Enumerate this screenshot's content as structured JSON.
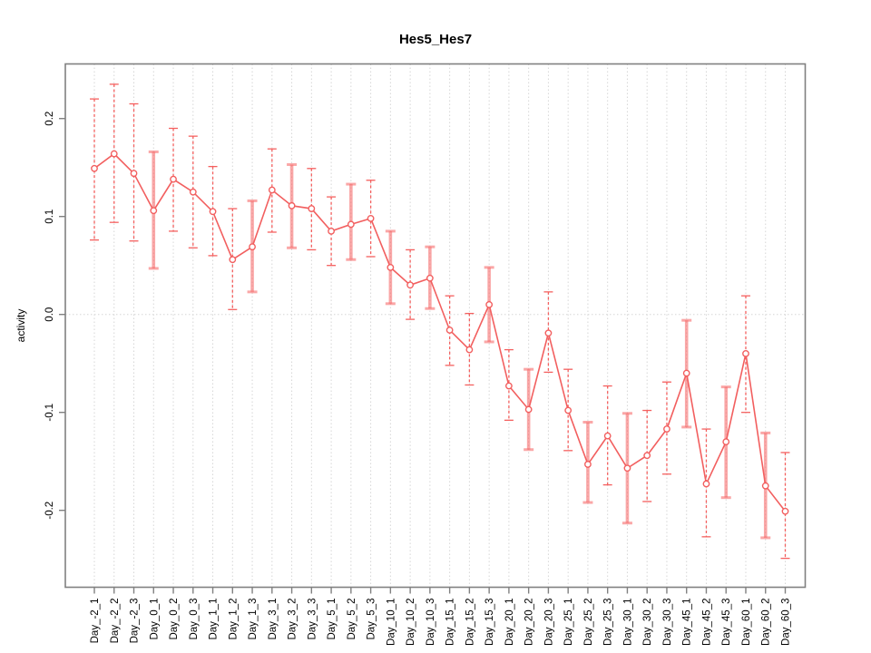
{
  "window": {
    "background": "#ffffff"
  },
  "chart_data": {
    "type": "line",
    "title": "Hes5_Hes7",
    "xlabel": "",
    "ylabel": "activity",
    "ylim": [
      -0.278,
      0.256
    ],
    "yticks": [
      0.2,
      0.1,
      0.0,
      -0.1,
      -0.2
    ],
    "ytick_labels": [
      "0.2",
      "0.1",
      "0.0",
      "-0.1",
      "-0.2"
    ],
    "grid": "vertical dotted gridline at every category; horizontal dotted line at y=0",
    "legend": "none",
    "style": "open circle points with vertical error bars (whisker caps), connected by a line; R base-graphics look",
    "colors": {
      "point_line": "#f25f5f",
      "error_bar_thin": "#f4605f",
      "error_bar_thick": "rgba(246,108,108,0.6)",
      "gridline": "#d6d6d6",
      "frame": "#808080",
      "text": "#000000"
    },
    "categories": [
      "Day_-2_1",
      "Day_-2_2",
      "Day_-2_3",
      "Day_0_1",
      "Day_0_2",
      "Day_0_3",
      "Day_1_1",
      "Day_1_2",
      "Day_1_3",
      "Day_3_1",
      "Day_3_2",
      "Day_3_3",
      "Day_5_1",
      "Day_5_2",
      "Day_5_3",
      "Day_10_1",
      "Day_10_2",
      "Day_10_3",
      "Day_15_1",
      "Day_15_2",
      "Day_15_3",
      "Day_20_1",
      "Day_20_2",
      "Day_20_3",
      "Day_25_1",
      "Day_25_2",
      "Day_25_3",
      "Day_30_1",
      "Day_30_2",
      "Day_30_3",
      "Day_45_1",
      "Day_45_2",
      "Day_45_3",
      "Day_60_1",
      "Day_60_2",
      "Day_60_3"
    ],
    "values": [
      0.149,
      0.164,
      0.144,
      0.106,
      0.138,
      0.125,
      0.105,
      0.056,
      0.069,
      0.127,
      0.111,
      0.108,
      0.085,
      0.092,
      0.098,
      0.048,
      0.03,
      0.037,
      -0.016,
      -0.036,
      0.01,
      -0.073,
      -0.097,
      -0.019,
      -0.098,
      -0.153,
      -0.124,
      -0.157,
      -0.144,
      -0.117,
      -0.06,
      -0.173,
      -0.13,
      -0.04,
      -0.175,
      -0.201
    ],
    "error_high": [
      0.22,
      0.235,
      0.215,
      0.166,
      0.19,
      0.182,
      0.151,
      0.108,
      0.116,
      0.169,
      0.153,
      0.149,
      0.12,
      0.133,
      0.137,
      0.085,
      0.066,
      0.069,
      0.019,
      0.001,
      0.048,
      -0.036,
      -0.056,
      0.023,
      -0.056,
      -0.11,
      -0.073,
      -0.101,
      -0.098,
      -0.069,
      -0.006,
      -0.117,
      -0.074,
      0.019,
      -0.121,
      -0.141
    ],
    "error_low": [
      0.076,
      0.094,
      0.075,
      0.047,
      0.085,
      0.068,
      0.06,
      0.005,
      0.023,
      0.084,
      0.068,
      0.066,
      0.05,
      0.056,
      0.059,
      0.011,
      -0.005,
      0.006,
      -0.052,
      -0.072,
      -0.028,
      -0.108,
      -0.138,
      -0.059,
      -0.139,
      -0.192,
      -0.174,
      -0.213,
      -0.191,
      -0.163,
      -0.115,
      -0.227,
      -0.187,
      -0.1,
      -0.228,
      -0.249
    ],
    "bar_weight": [
      "thin",
      "thin",
      "thin",
      "thick",
      "thin",
      "thin",
      "thin",
      "thin",
      "thick",
      "thin",
      "thick",
      "thin",
      "thin",
      "thick",
      "thin",
      "thick",
      "thin",
      "thick",
      "thin",
      "thin",
      "thick",
      "thin",
      "thick",
      "thin",
      "thin",
      "thick",
      "thin",
      "thick",
      "thin",
      "thin",
      "thick",
      "thin",
      "thick",
      "thin",
      "thick",
      "thin"
    ]
  }
}
